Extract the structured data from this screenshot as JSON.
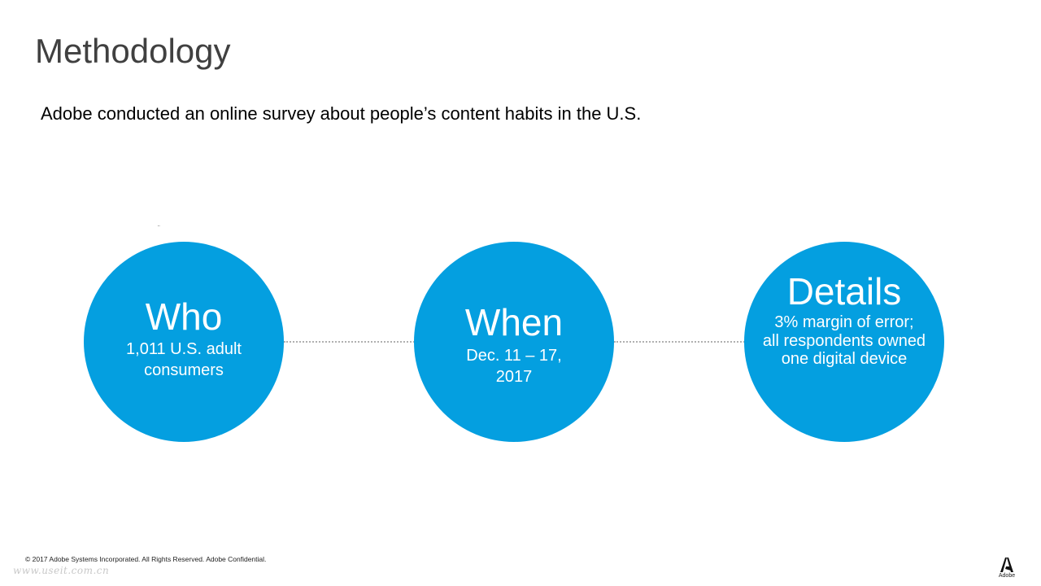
{
  "title": "Methodology",
  "subtitle": "Adobe conducted an online survey about people’s content habits in the U.S.",
  "stray_mark": "¨",
  "accent_color": "#049fe0",
  "connector_color": "#b0b0b0",
  "circles": [
    {
      "heading": "Who",
      "body": "1,011 U.S. adult consumers"
    },
    {
      "heading": "When",
      "body": "Dec. 11 – 17, 2017"
    },
    {
      "heading": "Details",
      "body_line1": "3% margin of error;",
      "body_line2": "all respondents owned one digital device"
    }
  ],
  "footer": "© 2017 Adobe Systems Incorporated.  All Rights Reserved.  Adobe Confidential.",
  "watermark": "www.useit.com.cn",
  "logo": {
    "icon": "adobe-logo-icon",
    "text": "Adobe"
  }
}
